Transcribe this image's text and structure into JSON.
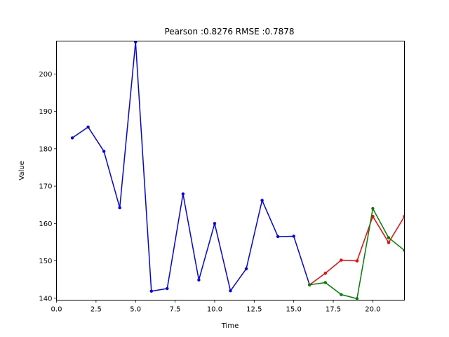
{
  "chart_data": {
    "type": "line",
    "title": "Pearson :0.8276  RMSE :0.7878",
    "xlabel": "Time",
    "ylabel": "Value",
    "xlim": [
      0,
      22
    ],
    "ylim": [
      139.5,
      208.8
    ],
    "xticks": [
      "0.0",
      "2.5",
      "5.0",
      "7.5",
      "10.0",
      "12.5",
      "15.0",
      "17.5",
      "20.0"
    ],
    "xtick_values": [
      0,
      2.5,
      5,
      7.5,
      10,
      12.5,
      15,
      17.5,
      20
    ],
    "yticks": [
      "140",
      "150",
      "160",
      "170",
      "180",
      "190",
      "200"
    ],
    "ytick_values": [
      140,
      150,
      160,
      170,
      180,
      190,
      200
    ],
    "grid": false,
    "series": [
      {
        "color": "#0000ff",
        "x": [
          1,
          2,
          3,
          4,
          5,
          6,
          7,
          8,
          9,
          10,
          11,
          12,
          13,
          14,
          15,
          16
        ],
        "y": [
          182.9,
          185.8,
          179.3,
          164.2,
          208.6,
          141.9,
          142.6,
          167.9,
          144.9,
          160.0,
          142.0,
          147.9,
          166.2,
          156.5,
          156.6,
          143.6
        ]
      },
      {
        "color": "#ff0000",
        "x": [
          16,
          17,
          18,
          19,
          20,
          21,
          22
        ],
        "y": [
          143.6,
          146.7,
          150.2,
          150.0,
          161.9,
          154.9,
          161.9
        ]
      },
      {
        "color": "#008000",
        "x": [
          16,
          17,
          18,
          19,
          20,
          21,
          22
        ],
        "y": [
          143.6,
          144.2,
          141.0,
          139.9,
          164.0,
          156.2,
          152.8
        ]
      }
    ]
  }
}
